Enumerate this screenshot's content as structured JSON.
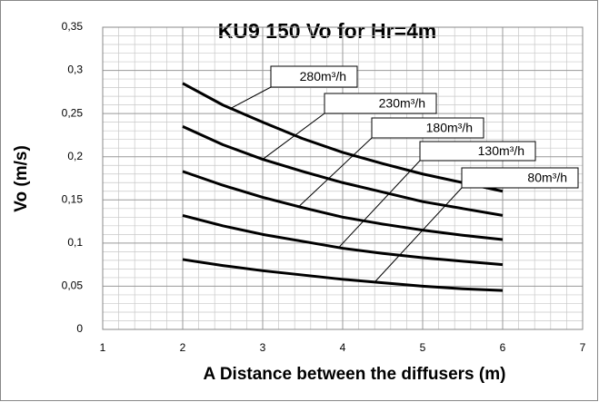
{
  "chart_data": {
    "type": "line",
    "title": "KU9 150 Vo for Hr=4m",
    "x_label": "A Distance between the diffusers (m)",
    "y_label": "Vo (m/s)",
    "xlim": [
      1,
      7
    ],
    "xticks": [
      1,
      2,
      3,
      4,
      5,
      6,
      7
    ],
    "ylim": [
      0,
      0.35
    ],
    "yticks": [
      0,
      {
        "value": 0.05,
        "label": "0,05"
      },
      {
        "value": 0.1,
        "label": "0,1"
      },
      {
        "value": 0.15,
        "label": "0,15"
      },
      {
        "value": 0.2,
        "label": "0,2"
      },
      {
        "value": 0.25,
        "label": "0,25"
      },
      {
        "value": 0.3,
        "label": "0,3"
      },
      {
        "value": 0.35,
        "label": "0,35"
      }
    ],
    "grid": true,
    "minor_grid": true,
    "x": [
      2,
      2.5,
      3,
      3.5,
      4,
      4.5,
      5,
      5.5,
      6
    ],
    "series": [
      {
        "name": "280m³/h",
        "color": "#000000",
        "values": [
          0.285,
          0.26,
          0.24,
          0.221,
          0.205,
          0.192,
          0.18,
          0.17,
          0.16
        ]
      },
      {
        "name": "230m³/h",
        "color": "#000000",
        "values": [
          0.235,
          0.214,
          0.197,
          0.183,
          0.17,
          0.159,
          0.148,
          0.14,
          0.132
        ]
      },
      {
        "name": "180m³/h",
        "color": "#000000",
        "values": [
          0.183,
          0.167,
          0.153,
          0.141,
          0.13,
          0.122,
          0.115,
          0.109,
          0.104
        ]
      },
      {
        "name": "130m³/h",
        "color": "#000000",
        "values": [
          0.132,
          0.12,
          0.11,
          0.102,
          0.094,
          0.088,
          0.083,
          0.079,
          0.075
        ]
      },
      {
        "name": "80m³/h",
        "color": "#000000",
        "values": [
          0.081,
          0.074,
          0.068,
          0.063,
          0.058,
          0.054,
          0.05,
          0.047,
          0.045
        ]
      }
    ]
  }
}
